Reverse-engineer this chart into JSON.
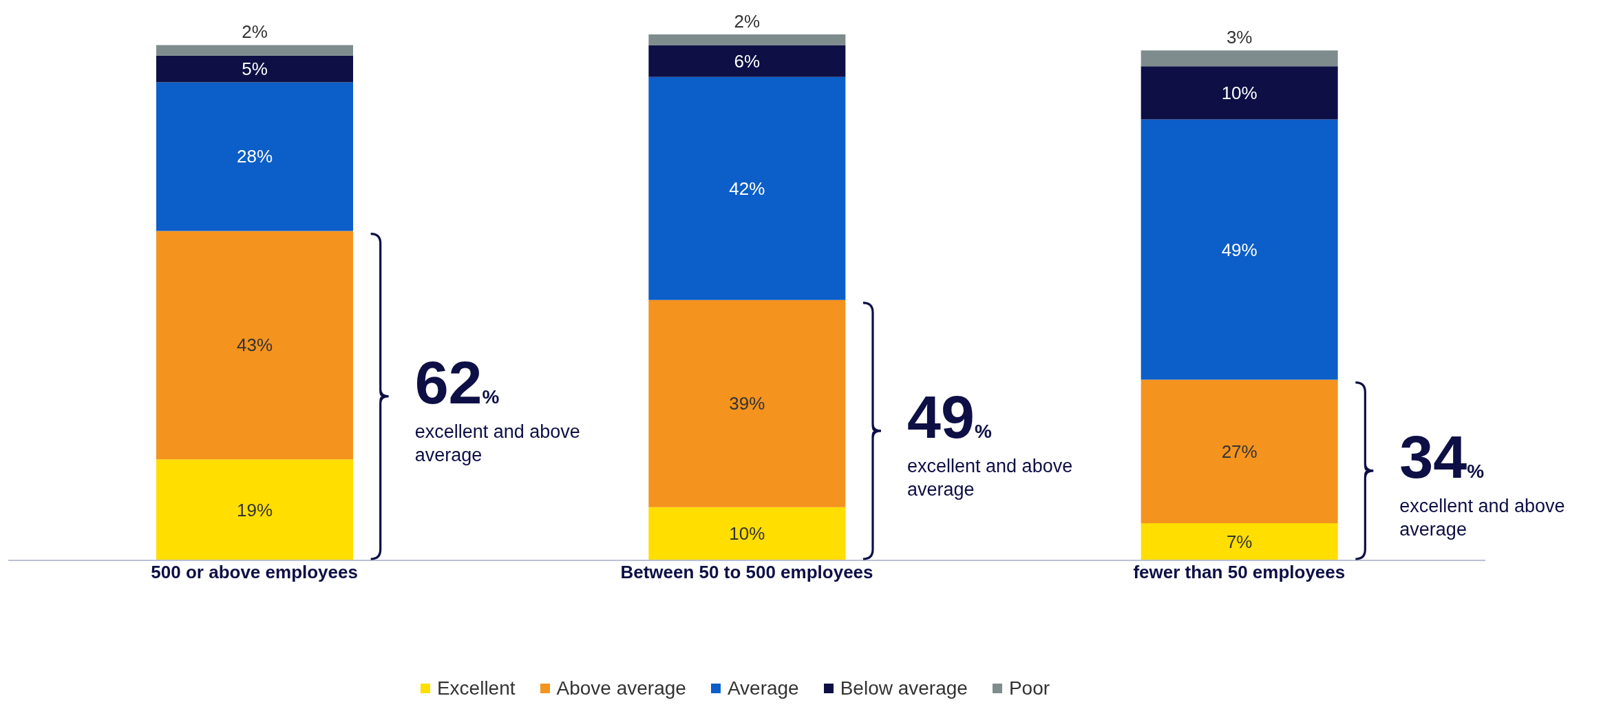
{
  "chart_data": {
    "type": "bar",
    "stacked": true,
    "categories": [
      "500 or above employees",
      "Between 50 to 500 employees",
      "fewer than 50 employees"
    ],
    "series": [
      {
        "name": "Excellent",
        "color": "#ffde00",
        "values": [
          19,
          10,
          7
        ],
        "value_labels": [
          "19%",
          "10%",
          "7%"
        ]
      },
      {
        "name": "Above average",
        "color": "#f4931e",
        "values": [
          43,
          39,
          27
        ],
        "value_labels": [
          "43%",
          "39%",
          "27%"
        ]
      },
      {
        "name": "Average",
        "color": "#0c5ec8",
        "values": [
          28,
          42,
          49
        ],
        "value_labels": [
          "28%",
          "42%",
          "49%"
        ]
      },
      {
        "name": "Below average",
        "color": "#0d0f45",
        "values": [
          5,
          6,
          10
        ],
        "value_labels": [
          "5%",
          "6%",
          "10%"
        ]
      },
      {
        "name": "Poor",
        "color": "#7f8c8d",
        "values": [
          2,
          2,
          3
        ],
        "value_labels": [
          "2%",
          "2%",
          "3%"
        ]
      }
    ],
    "annotations": [
      "62% excellent and above average",
      "49% excellent and above average",
      "34% excellent and above average"
    ],
    "legend": "bottom",
    "grid": false
  }
}
